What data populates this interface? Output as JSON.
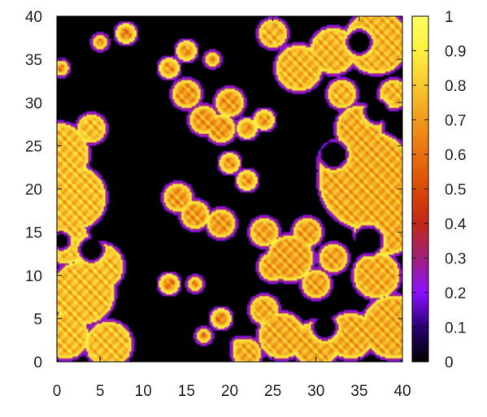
{
  "chart_data": {
    "type": "heatmap",
    "title": "",
    "xlabel": "",
    "ylabel": "",
    "xlim": [
      0,
      40
    ],
    "ylim": [
      0,
      40
    ],
    "x_ticks": [
      0,
      5,
      10,
      15,
      20,
      25,
      30,
      35,
      40
    ],
    "y_ticks": [
      0,
      5,
      10,
      15,
      20,
      25,
      30,
      35,
      40
    ],
    "colorbar": {
      "range": [
        0,
        1
      ],
      "ticks": [
        "0",
        "0.1",
        "0.2",
        "0.3",
        "0.4",
        "0.5",
        "0.6",
        "0.7",
        "0.8",
        "0.9",
        "1"
      ],
      "palette": [
        "#000000",
        "#2a0070",
        "#8a10ff",
        "#a0207a",
        "#c02818",
        "#d84a08",
        "#e87010",
        "#f09a1c",
        "#f8c830",
        "#fff040",
        "#ffff60"
      ]
    },
    "regions": [
      {
        "name": "left-lobe",
        "level": 0.78,
        "blobs": [
          [
            0,
            24,
            4
          ],
          [
            2,
            19,
            4
          ],
          [
            1,
            14,
            3
          ],
          [
            3,
            8,
            4
          ],
          [
            1,
            3,
            3
          ],
          [
            6,
            2,
            3
          ],
          [
            5,
            11,
            3
          ],
          [
            4,
            27,
            2
          ]
        ]
      },
      {
        "name": "right-lobe",
        "level": 0.74,
        "blobs": [
          [
            36,
            21,
            6
          ],
          [
            38,
            16,
            4
          ],
          [
            37,
            10,
            3
          ],
          [
            33,
            23,
            3
          ],
          [
            35,
            27,
            3
          ],
          [
            39,
            4,
            4
          ],
          [
            34,
            3,
            3
          ],
          [
            30,
            2,
            3
          ],
          [
            26,
            3,
            3
          ],
          [
            24,
            6,
            2
          ],
          [
            22,
            1,
            2
          ]
        ]
      },
      {
        "name": "top-right",
        "level": 0.76,
        "blobs": [
          [
            37,
            37,
            4
          ],
          [
            32,
            36,
            3
          ],
          [
            28,
            34,
            3
          ],
          [
            25,
            38,
            2
          ],
          [
            33,
            31,
            2
          ],
          [
            39,
            31,
            2
          ]
        ]
      },
      {
        "name": "center-blob",
        "level": 0.7,
        "blobs": [
          [
            16,
            17,
            2
          ],
          [
            19,
            16,
            2
          ],
          [
            14,
            19,
            2
          ],
          [
            22,
            21,
            1.5
          ],
          [
            20,
            23,
            1.5
          ],
          [
            19,
            27,
            2
          ],
          [
            22,
            27,
            1.5
          ]
        ]
      },
      {
        "name": "lower-center",
        "level": 0.72,
        "blobs": [
          [
            27,
            12,
            3
          ],
          [
            25,
            11,
            2
          ],
          [
            30,
            9,
            2
          ],
          [
            32,
            12,
            2
          ],
          [
            29,
            15,
            2
          ],
          [
            24,
            15,
            2
          ]
        ]
      },
      {
        "name": "upper-center",
        "level": 0.7,
        "blobs": [
          [
            15,
            31,
            2
          ],
          [
            17,
            28,
            2
          ],
          [
            15,
            36,
            1.5
          ],
          [
            13,
            34,
            1.5
          ],
          [
            20,
            30,
            2
          ],
          [
            24,
            28,
            1.5
          ],
          [
            18,
            35,
            1.2
          ]
        ]
      },
      {
        "name": "small-spots",
        "level": 0.65,
        "blobs": [
          [
            13,
            9,
            1.5
          ],
          [
            16,
            9,
            1.2
          ],
          [
            19,
            5,
            1.5
          ],
          [
            17,
            3,
            1.2
          ],
          [
            21,
            2,
            1
          ],
          [
            5,
            37,
            1.2
          ],
          [
            8,
            38,
            1.5
          ],
          [
            0.5,
            34,
            1.2
          ]
        ]
      }
    ],
    "holes": [
      [
        4,
        13,
        1.2
      ],
      [
        36,
        14,
        1.5
      ],
      [
        35,
        37,
        1.2
      ],
      [
        32,
        24,
        1.4
      ],
      [
        37,
        29,
        1.2
      ],
      [
        31,
        4,
        1.2
      ],
      [
        0.5,
        14,
        0.8
      ]
    ]
  }
}
